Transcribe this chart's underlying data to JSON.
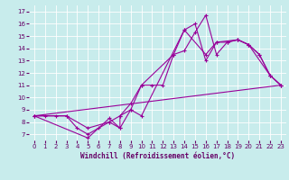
{
  "title": "",
  "xlabel": "Windchill (Refroidissement éolien,°C)",
  "background_color": "#c8ecec",
  "line_color": "#990099",
  "xlim": [
    -0.5,
    23.5
  ],
  "ylim": [
    6.5,
    17.5
  ],
  "xticks": [
    0,
    1,
    2,
    3,
    4,
    5,
    6,
    7,
    8,
    9,
    10,
    11,
    12,
    13,
    14,
    15,
    16,
    17,
    18,
    19,
    20,
    21,
    22,
    23
  ],
  "yticks": [
    7,
    8,
    9,
    10,
    11,
    12,
    13,
    14,
    15,
    16,
    17
  ],
  "line1_x": [
    0,
    1,
    2,
    3,
    4,
    5,
    6,
    7,
    8,
    9,
    10,
    11,
    12,
    13,
    14,
    15,
    16,
    17,
    18,
    19,
    20,
    21,
    22,
    23
  ],
  "line1_y": [
    8.5,
    8.5,
    8.5,
    8.5,
    7.5,
    7.0,
    7.5,
    8.0,
    8.5,
    9.5,
    11.0,
    11.0,
    11.0,
    13.5,
    13.8,
    15.3,
    16.7,
    13.5,
    14.5,
    14.7,
    14.3,
    13.5,
    11.8,
    11.0
  ],
  "line2_x": [
    0,
    5,
    7,
    8,
    8,
    9,
    10,
    14,
    15,
    16,
    17,
    18,
    19,
    20,
    21,
    22,
    23
  ],
  "line2_y": [
    8.5,
    6.7,
    8.3,
    7.5,
    8.5,
    9.0,
    8.5,
    15.5,
    16.0,
    13.0,
    14.5,
    14.5,
    14.7,
    14.3,
    13.5,
    11.8,
    11.0
  ],
  "line3_x": [
    0,
    23
  ],
  "line3_y": [
    8.5,
    11.0
  ],
  "line4_x": [
    0,
    3,
    5,
    7,
    8,
    9,
    10,
    13,
    14,
    16,
    17,
    19,
    20,
    22,
    23
  ],
  "line4_y": [
    8.5,
    8.5,
    7.5,
    8.0,
    7.5,
    9.0,
    11.0,
    13.5,
    15.5,
    13.5,
    14.5,
    14.7,
    14.3,
    11.8,
    11.0
  ],
  "tick_fontsize": 5,
  "xlabel_fontsize": 5.5,
  "marker_size": 2.5,
  "linewidth": 0.8
}
